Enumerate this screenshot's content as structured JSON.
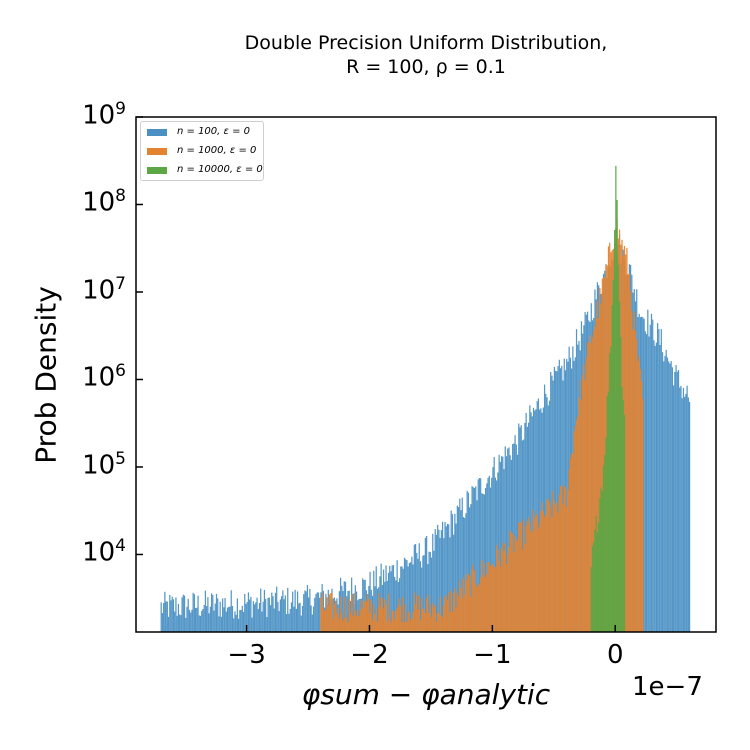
{
  "chart_data": {
    "type": "histogram",
    "title_line1": "Double Precision Uniform Distribution,",
    "title_line2": "R = 100, ρ = 0.1",
    "xlabel": "φsum − φanalytic",
    "ylabel": "Prob Density",
    "x_offset_text": "1e−7",
    "yscale": "log",
    "xlim": [
      -3.9,
      0.82
    ],
    "ylim": [
      1300,
      1000000000
    ],
    "x_ticks": [
      -3,
      -2,
      -1,
      0
    ],
    "x_tick_labels": [
      "−3",
      "−2",
      "−1",
      "0"
    ],
    "y_ticks": [
      10000,
      100000,
      1000000,
      10000000,
      100000000,
      1000000000
    ],
    "y_tick_labels": [
      "10",
      "10",
      "10",
      "10",
      "10",
      "10"
    ],
    "y_tick_exponents": [
      "4",
      "5",
      "6",
      "7",
      "8",
      "9"
    ],
    "legend_position": "upper-left",
    "series": [
      {
        "name": "n = 100, ε = 0",
        "color": "#4a90c4",
        "envelope_x": [
          -3.7,
          -2.5,
          -2.0,
          -1.5,
          -1.2,
          -1.0,
          -0.8,
          -0.6,
          -0.4,
          -0.25,
          -0.1,
          0.0,
          0.1,
          0.2,
          0.35,
          0.5,
          0.6
        ],
        "envelope_y": [
          2500,
          3000,
          4500,
          12000,
          40000,
          90000,
          200000,
          600000,
          1500000,
          4000000,
          15000000,
          40000000,
          20000000,
          6000000,
          3000000,
          1000000,
          600000
        ]
      },
      {
        "name": "n = 1000, ε = 0",
        "color": "#e38332",
        "envelope_x": [
          -2.4,
          -1.4,
          -0.4,
          -0.35,
          -0.3,
          -0.2,
          -0.1,
          0.0,
          0.1,
          0.15,
          0.2,
          0.22
        ],
        "envelope_y": [
          2500,
          2500,
          50000,
          200000,
          600000,
          3000000,
          12000000,
          60000000,
          20000000,
          4000000,
          1000000,
          500000
        ]
      },
      {
        "name": "n = 10000, ε = 0",
        "color": "#5aa744",
        "envelope_x": [
          -0.2,
          -0.1,
          -0.05,
          -0.02,
          0.0,
          0.02,
          0.05,
          0.08
        ],
        "envelope_y": [
          7000,
          100000,
          1500000,
          15000000,
          300000000,
          30000000,
          1000000,
          200000
        ]
      }
    ]
  }
}
